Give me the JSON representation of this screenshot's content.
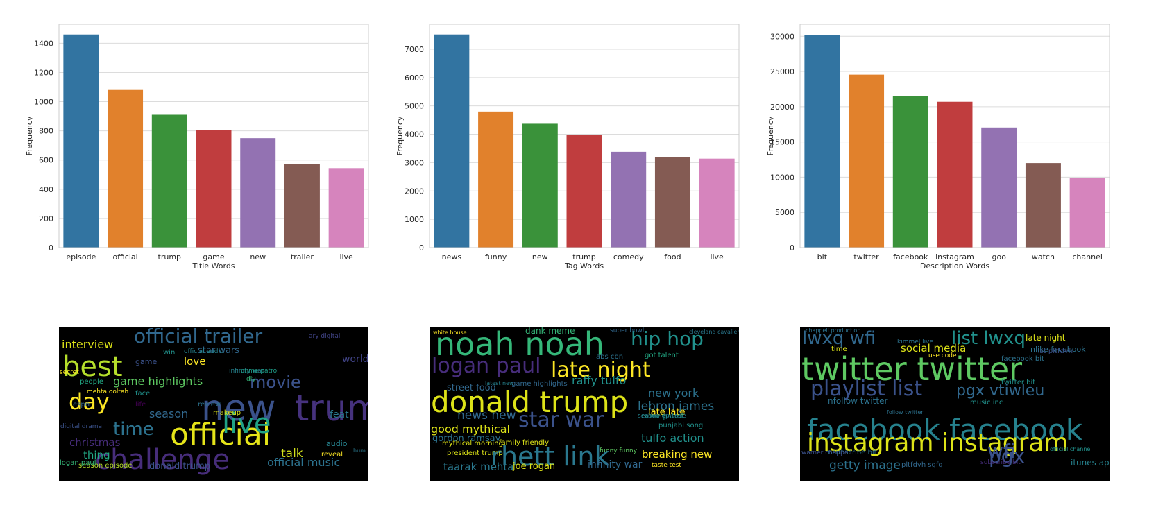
{
  "chart_data": [
    {
      "type": "bar",
      "categories": [
        "episode",
        "official",
        "trump",
        "game",
        "new",
        "trailer",
        "live"
      ],
      "values": [
        1460,
        1080,
        910,
        805,
        750,
        572,
        545
      ],
      "xlabel": "Title Words",
      "ylabel": "Frequency",
      "ylim": [
        0,
        1530
      ],
      "yticks": [
        0,
        200,
        400,
        600,
        800,
        1000,
        1200,
        1400
      ],
      "grid": true
    },
    {
      "type": "bar",
      "categories": [
        "news",
        "funny",
        "new",
        "trump",
        "comedy",
        "food",
        "live"
      ],
      "values": [
        7520,
        4800,
        4370,
        3980,
        3380,
        3190,
        3140
      ],
      "xlabel": "Tag Words",
      "ylabel": "Frequency",
      "ylim": [
        0,
        7880
      ],
      "yticks": [
        0,
        1000,
        2000,
        3000,
        4000,
        5000,
        6000,
        7000
      ],
      "grid": true
    },
    {
      "type": "bar",
      "categories": [
        "bit",
        "twitter",
        "facebook",
        "instagram",
        "goo",
        "watch",
        "channel"
      ],
      "values": [
        30150,
        24550,
        21500,
        20700,
        17050,
        12000,
        9900
      ],
      "xlabel": "Description Words",
      "ylabel": "Frequency",
      "ylim": [
        0,
        31700
      ],
      "yticks": [
        0,
        5000,
        10000,
        15000,
        20000,
        25000,
        30000
      ],
      "grid": true
    }
  ],
  "colors": [
    "#3274a1",
    "#e1812c",
    "#3a923a",
    "#c03d3e",
    "#9372b2",
    "#845b53",
    "#d684bd"
  ],
  "wordclouds": [
    {
      "name": "title-wordcloud",
      "words": [
        {
          "t": "new",
          "c": "#3b528b",
          "s": 52
        },
        {
          "t": "trump",
          "c": "#46327e",
          "s": 52
        },
        {
          "t": "official",
          "c": "#e5e419",
          "s": 44
        },
        {
          "t": "challenge",
          "c": "#472d7b",
          "s": 40
        },
        {
          "t": "best",
          "c": "#b5de2b",
          "s": 40
        },
        {
          "t": "live",
          "c": "#20a386",
          "s": 40
        },
        {
          "t": "day",
          "c": "#fde725",
          "s": 32
        },
        {
          "t": "official trailer",
          "c": "#31688e",
          "s": 28
        },
        {
          "t": "time",
          "c": "#2c728e",
          "s": 26
        },
        {
          "t": "movie",
          "c": "#3b528b",
          "s": 24
        },
        {
          "t": "interview",
          "c": "#dde318",
          "s": 16
        },
        {
          "t": "love",
          "c": "#fde725",
          "s": 15
        },
        {
          "t": "game highlights",
          "c": "#5ec962",
          "s": 16
        },
        {
          "t": "season",
          "c": "#31688e",
          "s": 16
        },
        {
          "t": "talk",
          "c": "#d2e21b",
          "s": 17
        },
        {
          "t": "official music",
          "c": "#2c728e",
          "s": 16
        },
        {
          "t": "christmas",
          "c": "#472d7b",
          "s": 15
        },
        {
          "t": "thing",
          "c": "#22a884",
          "s": 15
        },
        {
          "t": "donald trump",
          "c": "#3b528b",
          "s": 13
        },
        {
          "t": "season episode",
          "c": "#b5de2b",
          "s": 10
        },
        {
          "t": "star wars",
          "c": "#31688e",
          "s": 13
        },
        {
          "t": "world",
          "c": "#414487",
          "s": 14
        },
        {
          "t": "feat",
          "c": "#2a788e",
          "s": 14
        },
        {
          "t": "audio",
          "c": "#26828e",
          "s": 11
        },
        {
          "t": "reveal",
          "c": "#fde725",
          "s": 10
        },
        {
          "t": "makeup",
          "c": "#dde318",
          "s": 10
        },
        {
          "t": "people",
          "c": "#22a884",
          "s": 10
        },
        {
          "t": "review",
          "c": "#2c728e",
          "s": 10
        },
        {
          "t": "mehta ooltah",
          "c": "#fde725",
          "s": 9
        },
        {
          "t": "life",
          "c": "#440154",
          "s": 10
        },
        {
          "t": "win",
          "c": "#21918c",
          "s": 10
        },
        {
          "t": "logan paul",
          "c": "#35b779",
          "s": 10
        },
        {
          "t": "infinity war",
          "c": "#26828e",
          "s": 9
        },
        {
          "t": "crime patrol",
          "c": "#1f9e89",
          "s": 9
        },
        {
          "t": "secret",
          "c": "#fde725",
          "s": 9
        },
        {
          "t": "game",
          "c": "#3b528b",
          "s": 11
        },
        {
          "t": "face",
          "c": "#21918c",
          "s": 10
        },
        {
          "t": "espn",
          "c": "#31688e",
          "s": 10
        },
        {
          "t": "digital drama",
          "c": "#3b528b",
          "s": 9
        },
        {
          "t": "diy",
          "c": "#35b779",
          "s": 9
        },
        {
          "t": "ary digital",
          "c": "#414487",
          "s": 9
        },
        {
          "t": "hum drama",
          "c": "#2a788e",
          "s": 8
        },
        {
          "t": "official audio",
          "c": "#26828e",
          "s": 9
        }
      ]
    },
    {
      "name": "tag-wordcloud",
      "words": [
        {
          "t": "noah noah",
          "c": "#35b779",
          "s": 46
        },
        {
          "t": "donald trump",
          "c": "#dde318",
          "s": 42
        },
        {
          "t": "rhett link",
          "c": "#2a788e",
          "s": 38
        },
        {
          "t": "star war",
          "c": "#3b528b",
          "s": 30
        },
        {
          "t": "logan paul",
          "c": "#472d7b",
          "s": 30
        },
        {
          "t": "late night",
          "c": "#fde725",
          "s": 30
        },
        {
          "t": "hip hop",
          "c": "#21918c",
          "s": 28
        },
        {
          "t": "good mythical",
          "c": "#dde318",
          "s": 16
        },
        {
          "t": "news new",
          "c": "#31688e",
          "s": 17
        },
        {
          "t": "gordon ramsay",
          "c": "#2c728e",
          "s": 13
        },
        {
          "t": "lebron james",
          "c": "#2c728e",
          "s": 17
        },
        {
          "t": "taarak mehta",
          "c": "#2a788e",
          "s": 15
        },
        {
          "t": "joe rogan",
          "c": "#dde318",
          "s": 13
        },
        {
          "t": "infinity war",
          "c": "#31688e",
          "s": 14
        },
        {
          "t": "breaking new",
          "c": "#fde725",
          "s": 15
        },
        {
          "t": "tulfo action",
          "c": "#21918c",
          "s": 16
        },
        {
          "t": "raffy tulfo",
          "c": "#21918c",
          "s": 16
        },
        {
          "t": "new york",
          "c": "#2c728e",
          "s": 16
        },
        {
          "t": "late late",
          "c": "#fde725",
          "s": 13
        },
        {
          "t": "street food",
          "c": "#31688e",
          "s": 13
        },
        {
          "t": "dank meme",
          "c": "#35b779",
          "s": 12
        },
        {
          "t": "game highlights",
          "c": "#31688e",
          "s": 10
        },
        {
          "t": "family friendly",
          "c": "#dde318",
          "s": 10
        },
        {
          "t": "mythical morning",
          "c": "#dde318",
          "s": 10
        },
        {
          "t": "president trump",
          "c": "#dde318",
          "s": 10
        },
        {
          "t": "funny funny",
          "c": "#5ec962",
          "s": 9
        },
        {
          "t": "taste test",
          "c": "#fde725",
          "s": 9
        },
        {
          "t": "crime patrol",
          "c": "#21918c",
          "s": 10
        },
        {
          "t": "season episode",
          "c": "#26828e",
          "s": 9
        },
        {
          "t": "abs cbn",
          "c": "#2c728e",
          "s": 10
        },
        {
          "t": "got talent",
          "c": "#22a884",
          "s": 10
        },
        {
          "t": "punjabi song",
          "c": "#21918c",
          "s": 10
        },
        {
          "t": "super bowl",
          "c": "#31688e",
          "s": 9
        },
        {
          "t": "cleveland cavalier",
          "c": "#2a788e",
          "s": 8
        },
        {
          "t": "latest new",
          "c": "#26828e",
          "s": 8
        },
        {
          "t": "white house",
          "c": "#fde725",
          "s": 8
        }
      ]
    },
    {
      "name": "description-wordcloud",
      "words": [
        {
          "t": "twitter twitter",
          "c": "#5ec962",
          "s": 46
        },
        {
          "t": "facebook facebook",
          "c": "#26828e",
          "s": 42
        },
        {
          "t": "instagram instagram",
          "c": "#dde318",
          "s": 36
        },
        {
          "t": "playlist list",
          "c": "#3b528b",
          "s": 30
        },
        {
          "t": "lwxq wfi",
          "c": "#31688e",
          "s": 26
        },
        {
          "t": "list lwxq",
          "c": "#21918c",
          "s": 26
        },
        {
          "t": "pgx vtiwleu",
          "c": "#31688e",
          "s": 22
        },
        {
          "t": "wfi",
          "c": "#3b528b",
          "s": 28
        },
        {
          "t": "pgx",
          "c": "#3b528b",
          "s": 28
        },
        {
          "t": "getty image",
          "c": "#2c728e",
          "s": 17
        },
        {
          "t": "social media",
          "c": "#dde318",
          "s": 15
        },
        {
          "t": "nfollow twitter",
          "c": "#2c728e",
          "s": 12
        },
        {
          "t": "late night",
          "c": "#dde318",
          "s": 12
        },
        {
          "t": "nlike facebook",
          "c": "#2c728e",
          "s": 11
        },
        {
          "t": "itunes apple",
          "c": "#26828e",
          "s": 12
        },
        {
          "t": "music inc",
          "c": "#21918c",
          "s": 10
        },
        {
          "t": "twitter bit",
          "c": "#21918c",
          "s": 10
        },
        {
          "t": "nsubscribe bit",
          "c": "#2c728e",
          "s": 10
        },
        {
          "t": "pltfdvh sgfq",
          "c": "#31688e",
          "s": 10
        },
        {
          "t": "list pltfdvh",
          "c": "#3b528b",
          "s": 10
        },
        {
          "t": "facebook bit",
          "c": "#2c728e",
          "s": 10
        },
        {
          "t": "time",
          "c": "#dde318",
          "s": 10
        },
        {
          "t": "use code",
          "c": "#fde725",
          "s": 9
        },
        {
          "t": "warner chappell",
          "c": "#3b528b",
          "s": 9
        },
        {
          "t": "official channel",
          "c": "#21918c",
          "s": 8
        },
        {
          "t": "subscribe bit",
          "c": "#472d7b",
          "s": 9
        },
        {
          "t": "kimmel live",
          "c": "#2c728e",
          "s": 9
        },
        {
          "t": "follow twitter",
          "c": "#2c728e",
          "s": 8
        },
        {
          "t": "chappell production",
          "c": "#2c728e",
          "s": 8
        }
      ]
    }
  ]
}
